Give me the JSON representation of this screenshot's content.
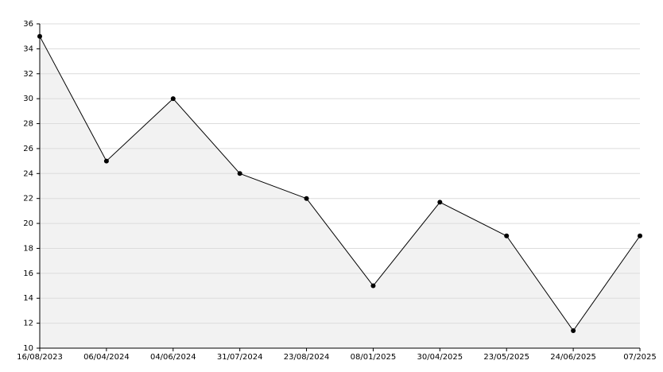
{
  "chart_data": {
    "type": "area",
    "categories": [
      "16/08/2023",
      "06/04/2024",
      "04/06/2024",
      "31/07/2024",
      "23/08/2024",
      "08/01/2025",
      "30/04/2025",
      "23/05/2025",
      "24/06/2025",
      "07/2025"
    ],
    "values": [
      35,
      25,
      30,
      24,
      22,
      15,
      21.7,
      19,
      11.4,
      19
    ],
    "color": "#000000",
    "fill": "#f2f2f2",
    "ylim": [
      10,
      36
    ],
    "yticks": [
      10,
      12,
      14,
      16,
      18,
      20,
      22,
      24,
      26,
      28,
      30,
      32,
      34,
      36
    ],
    "grid": true
  }
}
